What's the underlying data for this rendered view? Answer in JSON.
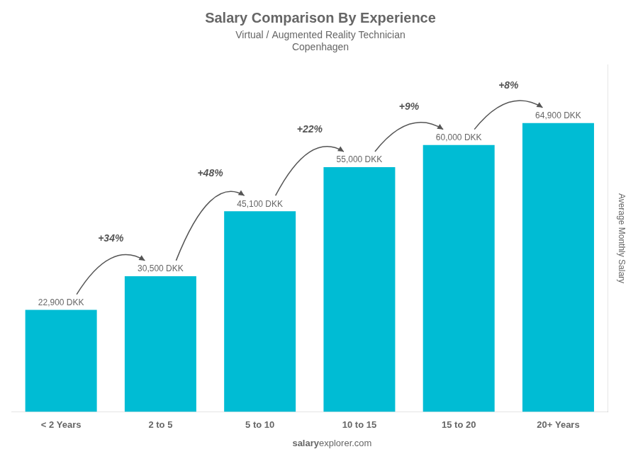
{
  "chart_data": {
    "type": "bar",
    "title": "Salary Comparison By Experience",
    "subtitle": "Virtual / Augmented Reality Technician",
    "y_label": "Average Monthly Salary",
    "categories": [
      "< 2 Years",
      "2 to 5",
      "5 to 10",
      "10 to 15",
      "15 to 20",
      "20+ Years"
    ],
    "values": [
      22900,
      30500,
      45100,
      55000,
      60000,
      64900
    ],
    "value_labels": [
      "22,900 DKK",
      "30,500 DKK",
      "45,100 DKK",
      "55,000 DKK",
      "60,000 DKK",
      "64,900 DKK"
    ],
    "data_labels": true,
    "color": "#00bcd4",
    "ylim": [
      0,
      78000
    ],
    "grid": false,
    "tick_labels": "x",
    "annotations": {
      "city": "Copenhagen",
      "changes": [
        "+34%",
        "+48%",
        "+22%",
        "+9%",
        "+8%"
      ],
      "footer_bold": "salary",
      "footer_normal": "explorer.com"
    }
  }
}
